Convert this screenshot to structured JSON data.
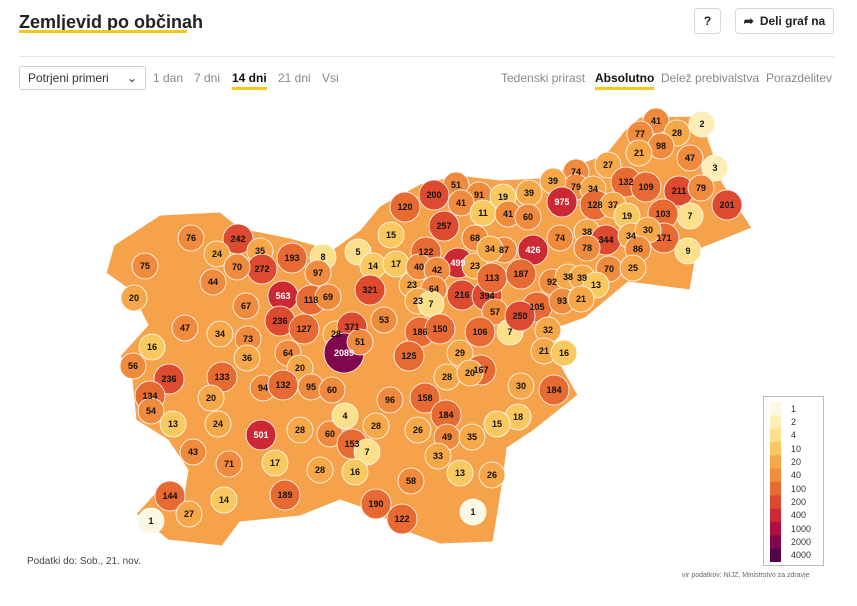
{
  "header": {
    "title": "Zemljevid po občinah",
    "help_label": "?",
    "share_label": "Deli graf na"
  },
  "filter": {
    "selected": "Potrjeni primeri"
  },
  "periods": [
    "1 dan",
    "7 dni",
    "14 dni",
    "21 dni",
    "Vsi"
  ],
  "active_period": "14 dni",
  "modes": [
    "Tedenski prirast",
    "Absolutno",
    "Delež prebivalstva",
    "Porazdelitev"
  ],
  "active_mode": "Absolutno",
  "footer": {
    "data_date": "Podatki do: Sob., 21. nov.",
    "source": "vir podatkov: NIJZ, Ministrstvo za zdravje"
  },
  "legend": {
    "labels": [
      "1",
      "2",
      "4",
      "10",
      "20",
      "40",
      "100",
      "200",
      "400",
      "1000",
      "2000",
      "4000"
    ],
    "colors": [
      "#fdf8e4",
      "#fdeeb8",
      "#fce08b",
      "#f9c95f",
      "#f6a849",
      "#f08a3d",
      "#e86a33",
      "#dd4a2f",
      "#cc2935",
      "#ad1045",
      "#82064d",
      "#52034a"
    ]
  },
  "municipality_values": [
    "41",
    "28",
    "2",
    "77",
    "98",
    "21",
    "47",
    "3",
    "74",
    "79",
    "27",
    "132",
    "109",
    "211",
    "79",
    "39",
    "975",
    "34",
    "128",
    "37",
    "19",
    "7",
    "103",
    "201",
    "51",
    "91",
    "19",
    "39",
    "200",
    "41",
    "11",
    "41",
    "60",
    "120",
    "257",
    "74",
    "38",
    "344",
    "34",
    "171",
    "30",
    "15",
    "68",
    "87",
    "426",
    "86",
    "9",
    "76",
    "242",
    "35",
    "24",
    "272",
    "193",
    "70",
    "5",
    "14",
    "17",
    "122",
    "499",
    "23",
    "34",
    "78",
    "70",
    "25",
    "8",
    "97",
    "44",
    "75",
    "20",
    "563",
    "118",
    "321",
    "23",
    "40",
    "42",
    "64",
    "216",
    "394",
    "113",
    "187",
    "92",
    "38",
    "39",
    "13",
    "67",
    "236",
    "69",
    "23",
    "7",
    "57",
    "105",
    "93",
    "21",
    "47",
    "127",
    "28",
    "371",
    "53",
    "186",
    "150",
    "106",
    "7",
    "250",
    "32",
    "34",
    "73",
    "16",
    "2089",
    "51",
    "125",
    "29",
    "21",
    "16",
    "64",
    "56",
    "36",
    "20",
    "167",
    "236",
    "133",
    "94",
    "132",
    "95",
    "60",
    "28",
    "20",
    "30",
    "184",
    "134",
    "20",
    "96",
    "158",
    "184",
    "18",
    "15",
    "54",
    "13",
    "24",
    "28",
    "60",
    "4",
    "28",
    "26",
    "49",
    "35",
    "501",
    "153",
    "7",
    "33",
    "43",
    "71",
    "17",
    "28",
    "16",
    "13",
    "26",
    "58",
    "189",
    "144",
    "14",
    "27",
    "190",
    "1",
    "122",
    "1",
    "86"
  ]
}
